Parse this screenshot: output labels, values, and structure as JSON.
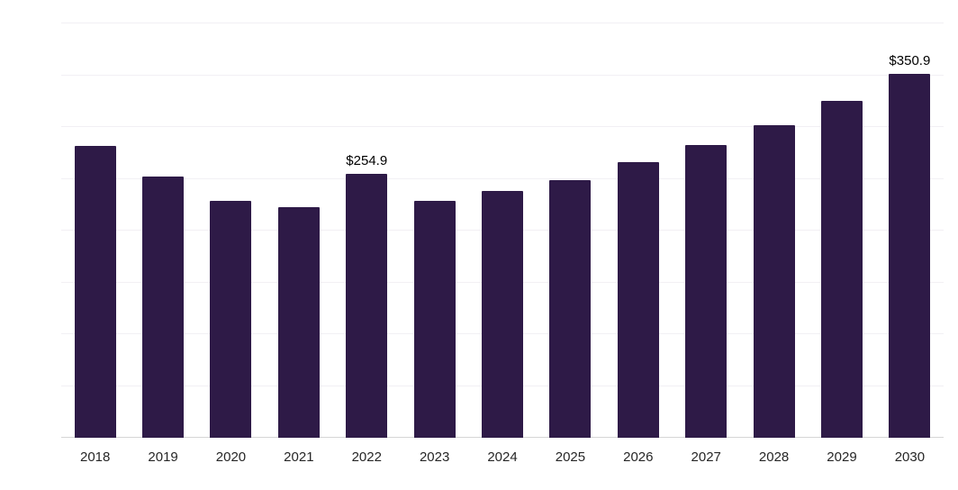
{
  "chart_data": {
    "type": "bar",
    "title": "",
    "categories": [
      "2018",
      "2019",
      "2020",
      "2021",
      "2022",
      "2023",
      "2024",
      "2025",
      "2026",
      "2027",
      "2028",
      "2029",
      "2030"
    ],
    "values": [
      282,
      252,
      229,
      223,
      254.9,
      229,
      238,
      249,
      266,
      283,
      302,
      325,
      350.9
    ],
    "data_labels": [
      {
        "index": 4,
        "text": "$254.9"
      },
      {
        "index": 12,
        "text": "$350.9"
      }
    ],
    "ylim": [
      0,
      400
    ],
    "grid_step": 50,
    "grid": "horizontal",
    "legend": "none",
    "xlabel": "",
    "ylabel": "",
    "bar_color": "#2E1A47",
    "gridline_color": "#f2f0f4",
    "axis_line_color": "#d6d6d6",
    "label_color": "#000000",
    "tick_color": "#262626"
  }
}
